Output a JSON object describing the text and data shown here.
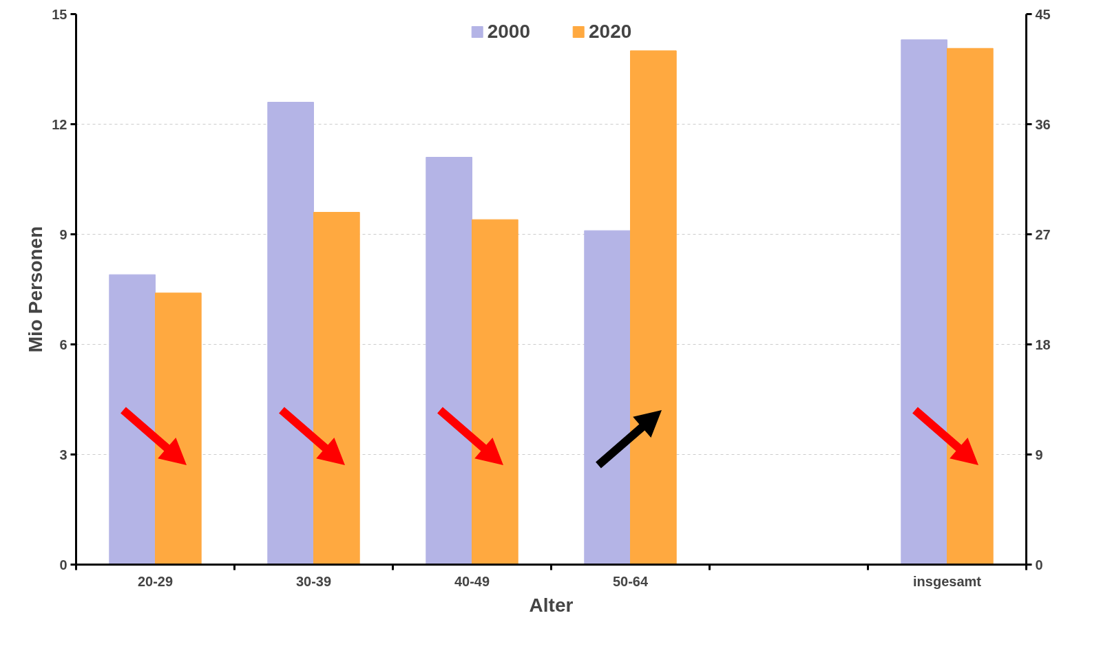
{
  "chart_data": {
    "type": "bar",
    "xlabel": "Alter",
    "ylabel": "Mio Personen",
    "categories": [
      "20-29",
      "30-39",
      "40-49",
      "50-64",
      null,
      "insgesamt"
    ],
    "series": [
      {
        "name": "2000",
        "color": "#b4b4e6",
        "values": [
          7.9,
          12.6,
          11.1,
          9.1,
          null,
          null
        ]
      },
      {
        "name": "2020",
        "color": "#ffa940",
        "values": [
          7.4,
          9.6,
          9.4,
          14.0,
          null,
          null
        ]
      },
      {
        "color": "#b4b4e6",
        "axis": "y2",
        "values": [
          null,
          null,
          null,
          null,
          null,
          42.9
        ]
      },
      {
        "color": "#ffa940",
        "axis": "y2",
        "values": [
          null,
          null,
          null,
          null,
          null,
          42.2
        ]
      }
    ],
    "ylim": [
      0,
      15
    ],
    "yticks": [
      0,
      3,
      6,
      9,
      12,
      15
    ],
    "y2lim": [
      0,
      45
    ],
    "y2ticks": [
      0,
      9,
      18,
      27,
      36,
      45
    ],
    "grid": "y",
    "legend": "top"
  }
}
